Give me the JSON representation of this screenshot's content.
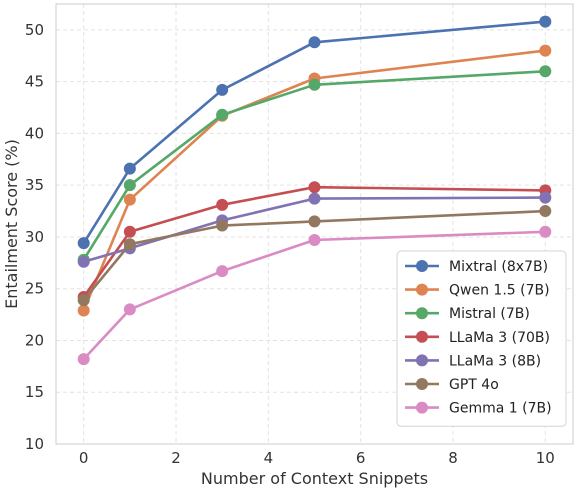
{
  "chart_data": {
    "type": "line",
    "xlabel": "Number of Context Snippets",
    "ylabel": "Entailment Score (%)",
    "xlim": [
      -0.6,
      10.6
    ],
    "ylim": [
      10,
      52.5
    ],
    "x_ticks": [
      0,
      2,
      4,
      6,
      8,
      10
    ],
    "y_ticks": [
      10,
      15,
      20,
      25,
      30,
      35,
      40,
      45,
      50
    ],
    "grid": true,
    "legend_position": "lower-right",
    "x": [
      0,
      1,
      3,
      5,
      10
    ],
    "series": [
      {
        "name": "Mixtral (8x7B)",
        "color": "#4c72b0",
        "values": [
          29.4,
          36.6,
          44.2,
          48.8,
          50.8
        ]
      },
      {
        "name": "Qwen 1.5 (7B)",
        "color": "#dd8452",
        "values": [
          22.9,
          33.6,
          41.7,
          45.3,
          48.0
        ]
      },
      {
        "name": "Mistral (7B)",
        "color": "#55a868",
        "values": [
          27.8,
          35.0,
          41.8,
          44.7,
          46.0
        ]
      },
      {
        "name": "LLaMa 3 (70B)",
        "color": "#c44e52",
        "values": [
          24.2,
          30.5,
          33.1,
          34.8,
          34.5
        ]
      },
      {
        "name": "LLaMa 3 (8B)",
        "color": "#8172b3",
        "values": [
          27.6,
          28.9,
          31.6,
          33.7,
          33.8
        ]
      },
      {
        "name": "GPT 4o",
        "color": "#937860",
        "values": [
          23.9,
          29.3,
          31.1,
          31.5,
          32.5
        ]
      },
      {
        "name": "Gemma 1 (7B)",
        "color": "#da8bc3",
        "values": [
          18.2,
          23.0,
          26.7,
          29.7,
          30.5
        ]
      }
    ]
  }
}
